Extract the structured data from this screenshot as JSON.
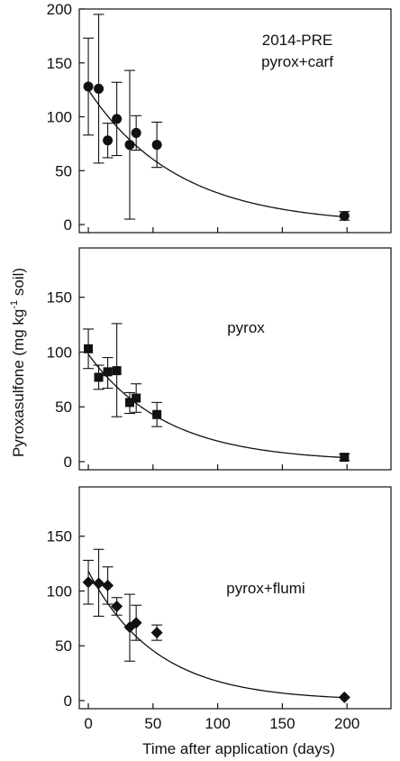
{
  "chart_data": {
    "type": "scatter",
    "xlabel": "Time after application (days)",
    "ylabel": "Pyroxasulfone (mg kg",
    "ylabel_sup": "-1",
    "ylabel_tail": " soil)",
    "x_ticks": [
      0,
      50,
      100,
      150,
      200
    ],
    "panels": [
      {
        "label_lines": [
          "2014-PRE",
          "pyrox+carf"
        ],
        "marker": "circle",
        "ylim": [
          0,
          200
        ],
        "y_ticks": [
          0,
          50,
          100,
          150,
          200
        ],
        "points": [
          {
            "x": 0,
            "y": 128,
            "lo": 83,
            "hi": 173
          },
          {
            "x": 8,
            "y": 126,
            "lo": 57,
            "hi": 195
          },
          {
            "x": 15,
            "y": 78,
            "lo": 62,
            "hi": 94
          },
          {
            "x": 22,
            "y": 98,
            "lo": 64,
            "hi": 132
          },
          {
            "x": 32,
            "y": 74,
            "lo": 5,
            "hi": 143
          },
          {
            "x": 37,
            "y": 85,
            "lo": 69,
            "hi": 101
          },
          {
            "x": 53,
            "y": 74,
            "lo": 53,
            "hi": 95
          },
          {
            "x": 198,
            "y": 8,
            "lo": 4,
            "hi": 12
          }
        ],
        "fit": {
          "c0": 125,
          "k": 0.0145
        }
      },
      {
        "label_lines": [
          "pyrox"
        ],
        "marker": "square",
        "ylim": [
          0,
          195
        ],
        "y_ticks": [
          0,
          50,
          100,
          150
        ],
        "points": [
          {
            "x": 0,
            "y": 103,
            "lo": 85,
            "hi": 121
          },
          {
            "x": 8,
            "y": 77,
            "lo": 66,
            "hi": 88
          },
          {
            "x": 15,
            "y": 82,
            "lo": 67,
            "hi": 95
          },
          {
            "x": 22,
            "y": 83,
            "lo": 41,
            "hi": 126
          },
          {
            "x": 32,
            "y": 54,
            "lo": 44,
            "hi": 63
          },
          {
            "x": 37,
            "y": 58,
            "lo": 45,
            "hi": 71
          },
          {
            "x": 53,
            "y": 43,
            "lo": 32,
            "hi": 54
          },
          {
            "x": 198,
            "y": 4,
            "lo": 1,
            "hi": 7
          }
        ],
        "fit": {
          "c0": 98,
          "k": 0.0165
        }
      },
      {
        "label_lines": [
          "pyrox+flumi"
        ],
        "marker": "diamond",
        "ylim": [
          0,
          195
        ],
        "y_ticks": [
          0,
          50,
          100,
          150
        ],
        "points": [
          {
            "x": 0,
            "y": 108,
            "lo": 88,
            "hi": 128
          },
          {
            "x": 8,
            "y": 107,
            "lo": 77,
            "hi": 138
          },
          {
            "x": 15,
            "y": 105,
            "lo": 88,
            "hi": 122
          },
          {
            "x": 22,
            "y": 86,
            "lo": 78,
            "hi": 94
          },
          {
            "x": 32,
            "y": 67,
            "lo": 36,
            "hi": 97
          },
          {
            "x": 37,
            "y": 71,
            "lo": 55,
            "hi": 87
          },
          {
            "x": 53,
            "y": 62,
            "lo": 55,
            "hi": 69
          },
          {
            "x": 198,
            "y": 3,
            "lo": 3,
            "hi": 3
          }
        ],
        "fit": {
          "c0": 118,
          "k": 0.019
        }
      }
    ]
  }
}
